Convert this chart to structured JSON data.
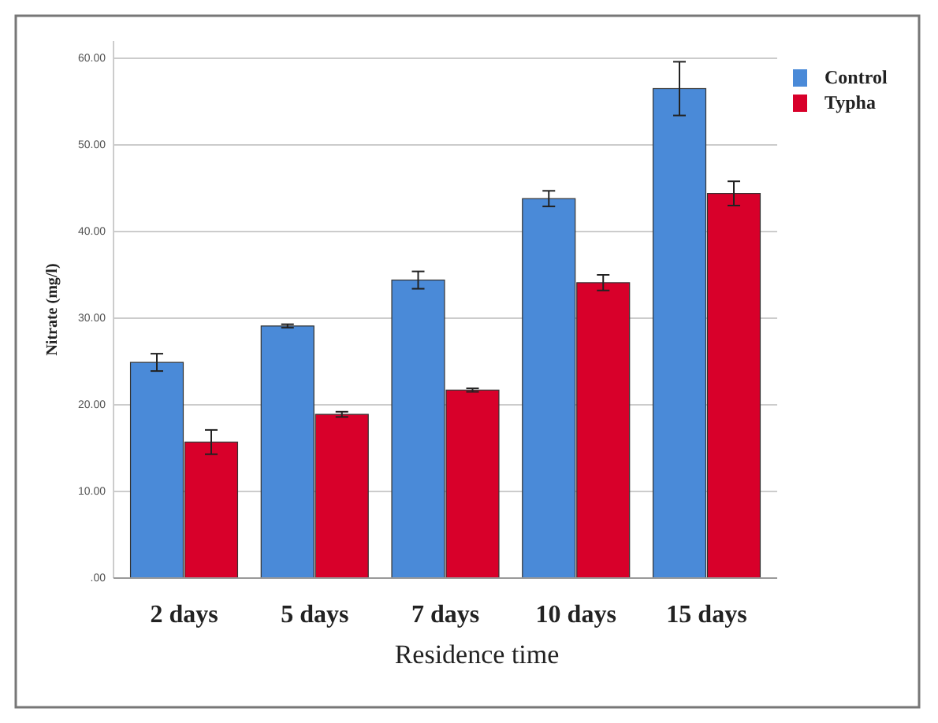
{
  "chart_data": {
    "type": "bar",
    "xlabel": "Residence time",
    "ylabel": "Nitrate (mg/l)",
    "categories": [
      "2 days",
      "5 days",
      "7 days",
      "10 days",
      "15 days"
    ],
    "series": [
      {
        "name": "Control",
        "color": "#4a8ad8",
        "values": [
          24.9,
          29.1,
          34.4,
          43.8,
          56.5
        ],
        "errors": [
          1,
          0.2,
          1,
          0.9,
          3.1
        ]
      },
      {
        "name": "Typha",
        "color": "#d8002a",
        "values": [
          15.7,
          18.9,
          21.7,
          34.1,
          44.4
        ],
        "errors": [
          1.4,
          0.3,
          0.2,
          0.9,
          1.4
        ]
      }
    ],
    "ylim": [
      0,
      62
    ],
    "yticks": [
      {
        "value": 0,
        "label": ".00"
      },
      {
        "value": 10,
        "label": "10.00"
      },
      {
        "value": 20,
        "label": "20.00"
      },
      {
        "value": 30,
        "label": "30.00"
      },
      {
        "value": 40,
        "label": "40.00"
      },
      {
        "value": 50,
        "label": "50.00"
      },
      {
        "value": 60,
        "label": "60.00"
      }
    ],
    "grid": "y",
    "legend": "top right"
  }
}
